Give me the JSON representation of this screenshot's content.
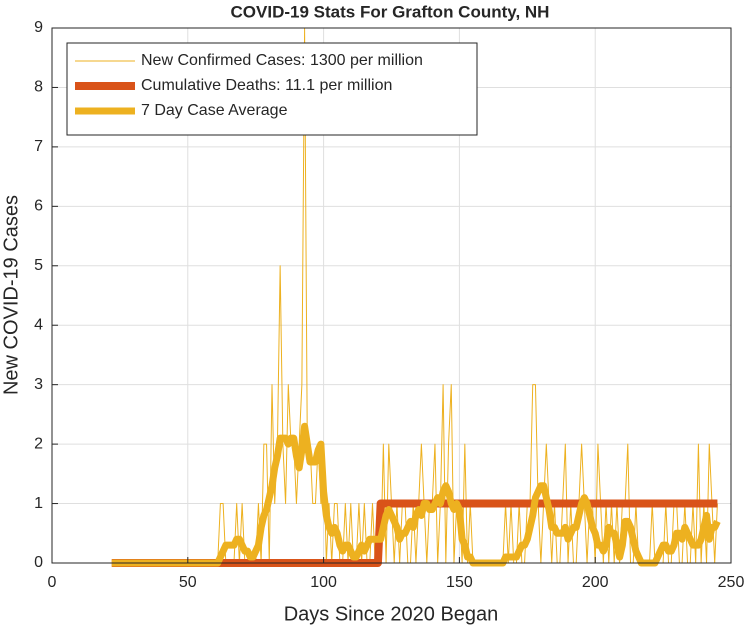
{
  "chart_data": {
    "type": "line",
    "title": "COVID-19 Stats For Grafton County, NH",
    "xlabel": "Days Since 2020 Began",
    "ylabel": "New COVID-19 Cases",
    "x": [
      22,
      23,
      24,
      25,
      26,
      27,
      28,
      29,
      30,
      31,
      32,
      33,
      34,
      35,
      36,
      37,
      38,
      39,
      40,
      41,
      42,
      43,
      44,
      45,
      46,
      47,
      48,
      49,
      50,
      51,
      52,
      53,
      54,
      55,
      56,
      57,
      58,
      59,
      60,
      61,
      62,
      63,
      64,
      65,
      66,
      67,
      68,
      69,
      70,
      71,
      72,
      73,
      74,
      75,
      76,
      77,
      78,
      79,
      80,
      81,
      82,
      83,
      84,
      85,
      86,
      87,
      88,
      89,
      90,
      91,
      92,
      93,
      94,
      95,
      96,
      97,
      98,
      99,
      100,
      101,
      102,
      103,
      104,
      105,
      106,
      107,
      108,
      109,
      110,
      111,
      112,
      113,
      114,
      115,
      116,
      117,
      118,
      119,
      120,
      121,
      122,
      123,
      124,
      125,
      126,
      127,
      128,
      129,
      130,
      131,
      132,
      133,
      134,
      135,
      136,
      137,
      138,
      139,
      140,
      141,
      142,
      143,
      144,
      145,
      146,
      147,
      148,
      149,
      150,
      151,
      152,
      153,
      154,
      155,
      156,
      157,
      158,
      159,
      160,
      161,
      162,
      163,
      164,
      165,
      166,
      167,
      168,
      169,
      170,
      171,
      172,
      173,
      174,
      175,
      176,
      177,
      178,
      179,
      180,
      181,
      182,
      183,
      184,
      185,
      186,
      187,
      188,
      189,
      190,
      191,
      192,
      193,
      194,
      195,
      196,
      197,
      198,
      199,
      200,
      201,
      202,
      203,
      204,
      205,
      206,
      207,
      208,
      209,
      210,
      211,
      212,
      213,
      214,
      215,
      216,
      217,
      218,
      219,
      220,
      221,
      222,
      223,
      224,
      225,
      226,
      227,
      228,
      229,
      230,
      231,
      232,
      233,
      234,
      235,
      236,
      237,
      238,
      239,
      240,
      241,
      242,
      243,
      244,
      245
    ],
    "series": [
      {
        "name": "New Confirmed Cases: 1300 per million",
        "color": "#EDB120",
        "width": 1,
        "values": [
          0,
          0,
          0,
          0,
          0,
          0,
          0,
          0,
          0,
          0,
          0,
          0,
          0,
          0,
          0,
          0,
          0,
          0,
          0,
          0,
          0,
          0,
          0,
          0,
          0,
          0,
          0,
          0,
          0,
          0,
          0,
          0,
          0,
          0,
          0,
          0,
          0,
          0,
          0,
          0,
          1,
          1,
          0,
          0,
          0,
          0,
          1,
          0,
          1,
          0,
          0,
          0,
          0,
          0,
          1,
          0,
          2,
          2,
          0,
          3,
          1,
          2,
          5,
          2,
          1,
          3,
          2,
          2,
          1,
          2,
          3,
          9,
          2,
          2,
          1,
          1,
          2,
          1,
          2,
          0,
          1,
          0,
          1,
          1,
          0,
          0,
          1,
          0,
          1,
          0,
          0,
          1,
          0,
          1,
          0,
          0,
          1,
          0,
          1,
          0,
          2,
          0,
          2,
          1,
          0,
          1,
          0,
          1,
          1,
          0,
          0,
          1,
          0,
          1,
          2,
          1,
          0,
          1,
          1,
          2,
          0,
          1,
          3,
          0,
          2,
          3,
          0,
          1,
          1,
          0,
          2,
          0,
          1,
          0,
          0,
          0,
          0,
          0,
          0,
          0,
          0,
          0,
          0,
          0,
          0,
          1,
          0,
          1,
          0,
          0,
          1,
          0,
          0,
          1,
          1,
          3,
          3,
          1,
          0,
          1,
          2,
          1,
          0,
          1,
          0,
          0,
          1,
          2,
          0,
          1,
          0,
          0,
          1,
          2,
          1,
          0,
          1,
          1,
          0,
          2,
          1,
          0,
          1,
          0,
          1,
          0,
          1,
          0,
          1,
          1,
          2,
          0,
          0,
          1,
          0,
          0,
          0,
          0,
          0,
          1,
          0,
          0,
          0,
          0,
          1,
          0,
          0,
          1,
          1,
          0,
          0,
          1,
          0,
          0,
          1,
          0,
          2,
          0,
          1,
          0,
          2,
          1,
          0,
          1
        ]
      },
      {
        "name": "Cumulative Deaths: 11.1 per million",
        "color": "#D95319",
        "width": 8,
        "values": [
          0,
          0,
          0,
          0,
          0,
          0,
          0,
          0,
          0,
          0,
          0,
          0,
          0,
          0,
          0,
          0,
          0,
          0,
          0,
          0,
          0,
          0,
          0,
          0,
          0,
          0,
          0,
          0,
          0,
          0,
          0,
          0,
          0,
          0,
          0,
          0,
          0,
          0,
          0,
          0,
          0,
          0,
          0,
          0,
          0,
          0,
          0,
          0,
          0,
          0,
          0,
          0,
          0,
          0,
          0,
          0,
          0,
          0,
          0,
          0,
          0,
          0,
          0,
          0,
          0,
          0,
          0,
          0,
          0,
          0,
          0,
          0,
          0,
          0,
          0,
          0,
          0,
          0,
          0,
          0,
          0,
          0,
          0,
          0,
          0,
          0,
          0,
          0,
          0,
          0,
          0,
          0,
          0,
          0,
          0,
          0,
          0,
          0,
          0,
          1,
          1,
          1,
          1,
          1,
          1,
          1,
          1,
          1,
          1,
          1,
          1,
          1,
          1,
          1,
          1,
          1,
          1,
          1,
          1,
          1,
          1,
          1,
          1,
          1,
          1,
          1,
          1,
          1,
          1,
          1,
          1,
          1,
          1,
          1,
          1,
          1,
          1,
          1,
          1,
          1,
          1,
          1,
          1,
          1,
          1,
          1,
          1,
          1,
          1,
          1,
          1,
          1,
          1,
          1,
          1,
          1,
          1,
          1,
          1,
          1,
          1,
          1,
          1,
          1,
          1,
          1,
          1,
          1,
          1,
          1,
          1,
          1,
          1,
          1,
          1,
          1,
          1,
          1,
          1,
          1,
          1,
          1,
          1,
          1,
          1,
          1,
          1,
          1,
          1,
          1,
          1,
          1,
          1,
          1,
          1,
          1,
          1,
          1,
          1,
          1,
          1,
          1,
          1,
          1,
          1,
          1,
          1,
          1,
          1,
          1,
          1,
          1,
          1,
          1,
          1,
          1,
          1,
          1,
          1,
          1,
          1,
          1,
          1,
          1
        ]
      },
      {
        "name": "7 Day Case Average",
        "color": "#EDB120",
        "width": 7,
        "values": [
          0,
          0,
          0,
          0,
          0,
          0,
          0,
          0,
          0,
          0,
          0,
          0,
          0,
          0,
          0,
          0,
          0,
          0,
          0,
          0,
          0,
          0,
          0,
          0,
          0,
          0,
          0,
          0,
          0,
          0,
          0,
          0,
          0,
          0,
          0,
          0,
          0,
          0,
          0,
          0,
          0.1,
          0.2,
          0.3,
          0.3,
          0.3,
          0.3,
          0.4,
          0.4,
          0.3,
          0.2,
          0.2,
          0.1,
          0.1,
          0.2,
          0.3,
          0.6,
          0.8,
          0.9,
          1.1,
          1.3,
          1.6,
          1.8,
          2.1,
          2.1,
          2.1,
          2.0,
          2.1,
          2.1,
          1.8,
          1.6,
          1.9,
          2.3,
          2.0,
          1.7,
          1.7,
          1.7,
          1.9,
          2.0,
          1.2,
          0.8,
          0.6,
          0.5,
          0.6,
          0.5,
          0.3,
          0.2,
          0.3,
          0.3,
          0.2,
          0.1,
          0.1,
          0.2,
          0.3,
          0.2,
          0.3,
          0.4,
          0.4,
          0.4,
          0.4,
          0.4,
          0.6,
          0.8,
          0.9,
          0.8,
          0.7,
          0.6,
          0.4,
          0.5,
          0.5,
          0.6,
          0.7,
          0.6,
          0.8,
          0.9,
          0.8,
          1.0,
          1.0,
          0.9,
          0.9,
          1.0,
          1.1,
          1.0,
          1.2,
          1.3,
          1.2,
          1.0,
          0.9,
          1.0,
          0.9,
          0.4,
          0.3,
          0.1,
          0.1,
          0,
          0,
          0,
          0,
          0,
          0,
          0,
          0,
          0,
          0,
          0,
          0,
          0.1,
          0.1,
          0.1,
          0.1,
          0.1,
          0.2,
          0.3,
          0.3,
          0.4,
          0.6,
          0.8,
          1.1,
          1.2,
          1.3,
          1.3,
          1.1,
          0.9,
          0.6,
          0.6,
          0.5,
          0.5,
          0.5,
          0.6,
          0.4,
          0.5,
          0.6,
          0.6,
          0.8,
          1.0,
          1.1,
          1.0,
          0.8,
          0.6,
          0.5,
          0.3,
          0.3,
          0.2,
          0.3,
          0.6,
          0.5,
          0.5,
          0.3,
          0.1,
          0.3,
          0.7,
          0.7,
          0.6,
          0.4,
          0.2,
          0.1,
          0,
          0,
          0,
          0,
          0,
          0,
          0.1,
          0.2,
          0.3,
          0.3,
          0.2,
          0.2,
          0.3,
          0.5,
          0.5,
          0.4,
          0.6,
          0.5,
          0.4,
          0.3,
          0.3,
          0.3,
          0.4,
          0.6,
          0.8,
          0.4,
          0.6,
          0.6,
          0.7
        ]
      }
    ],
    "xlim": [
      0,
      250
    ],
    "xticks": [
      0,
      50,
      100,
      150,
      200,
      250
    ],
    "ylim": [
      0,
      9
    ],
    "yticks": [
      0,
      1,
      2,
      3,
      4,
      5,
      6,
      7,
      8,
      9
    ],
    "grid": true,
    "legend": "northwest"
  }
}
